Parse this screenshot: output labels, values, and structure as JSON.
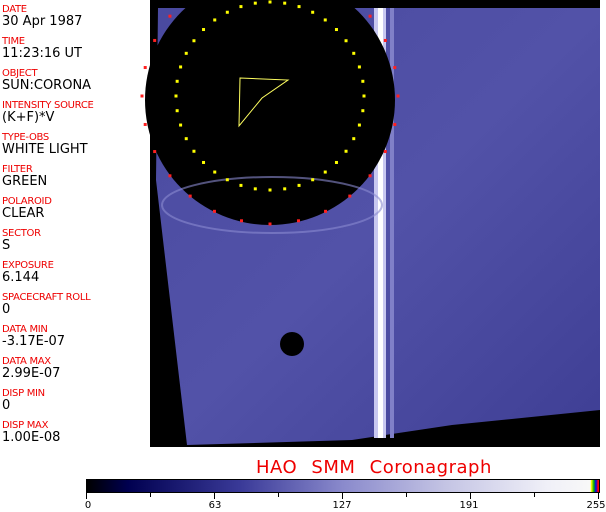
{
  "fields": [
    {
      "label": "DATE",
      "value": "30 Apr 1987"
    },
    {
      "label": "TIME",
      "value": "11:23:16 UT"
    },
    {
      "label": "OBJECT",
      "value": "SUN:CORONA"
    },
    {
      "label": "INTENSITY SOURCE",
      "value": "(K+F)*V"
    },
    {
      "label": "TYPE-OBS",
      "value": "WHITE LIGHT"
    },
    {
      "label": "FILTER",
      "value": "GREEN"
    },
    {
      "label": "POLAROID",
      "value": "CLEAR"
    },
    {
      "label": "SECTOR",
      "value": "S"
    },
    {
      "label": "EXPOSURE",
      "value": "6.144"
    },
    {
      "label": "SPACECRAFT ROLL",
      "value": "0"
    },
    {
      "label": "DATA MIN",
      "value": "-3.17E-07"
    },
    {
      "label": "DATA MAX",
      "value": "2.99E-07"
    },
    {
      "label": "DISP MIN",
      "value": "0"
    },
    {
      "label": "DISP MAX",
      "value": "1.00E-08"
    }
  ],
  "title": "HAO  SMM Coronagraph",
  "colorbar": {
    "ticks": [
      "0",
      "63",
      "127",
      "191",
      "255"
    ],
    "colors": [
      "#000000",
      "#000050",
      "#8a8acc",
      "#f8f8f8",
      "#ffff00",
      "#00aa00",
      "#0000ff",
      "#ff0000"
    ]
  }
}
